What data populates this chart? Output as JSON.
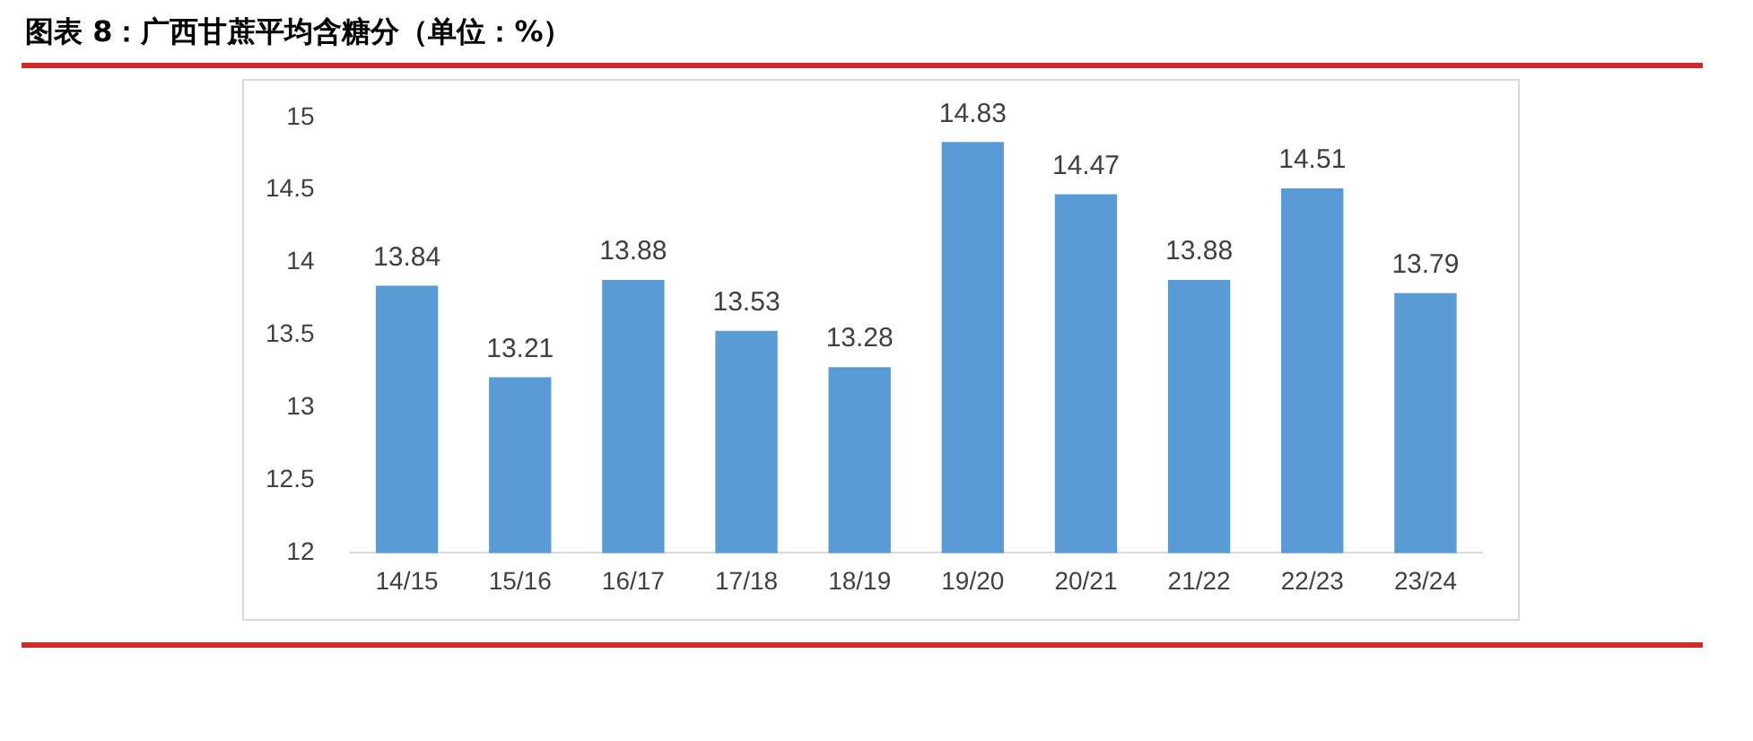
{
  "chart_data": {
    "type": "bar",
    "title": "图表 8：广西甘蔗平均含糖分（单位：%）",
    "categories": [
      "14/15",
      "15/16",
      "16/17",
      "17/18",
      "18/19",
      "19/20",
      "20/21",
      "21/22",
      "22/23",
      "23/24"
    ],
    "values": [
      13.84,
      13.21,
      13.88,
      13.53,
      13.28,
      14.83,
      14.47,
      13.88,
      14.51,
      13.79
    ],
    "color": "#5b9bd5",
    "ylim": [
      12,
      15
    ],
    "yticks": [
      12,
      12.5,
      13,
      13.5,
      14,
      14.5,
      15
    ],
    "data_labels": true
  }
}
